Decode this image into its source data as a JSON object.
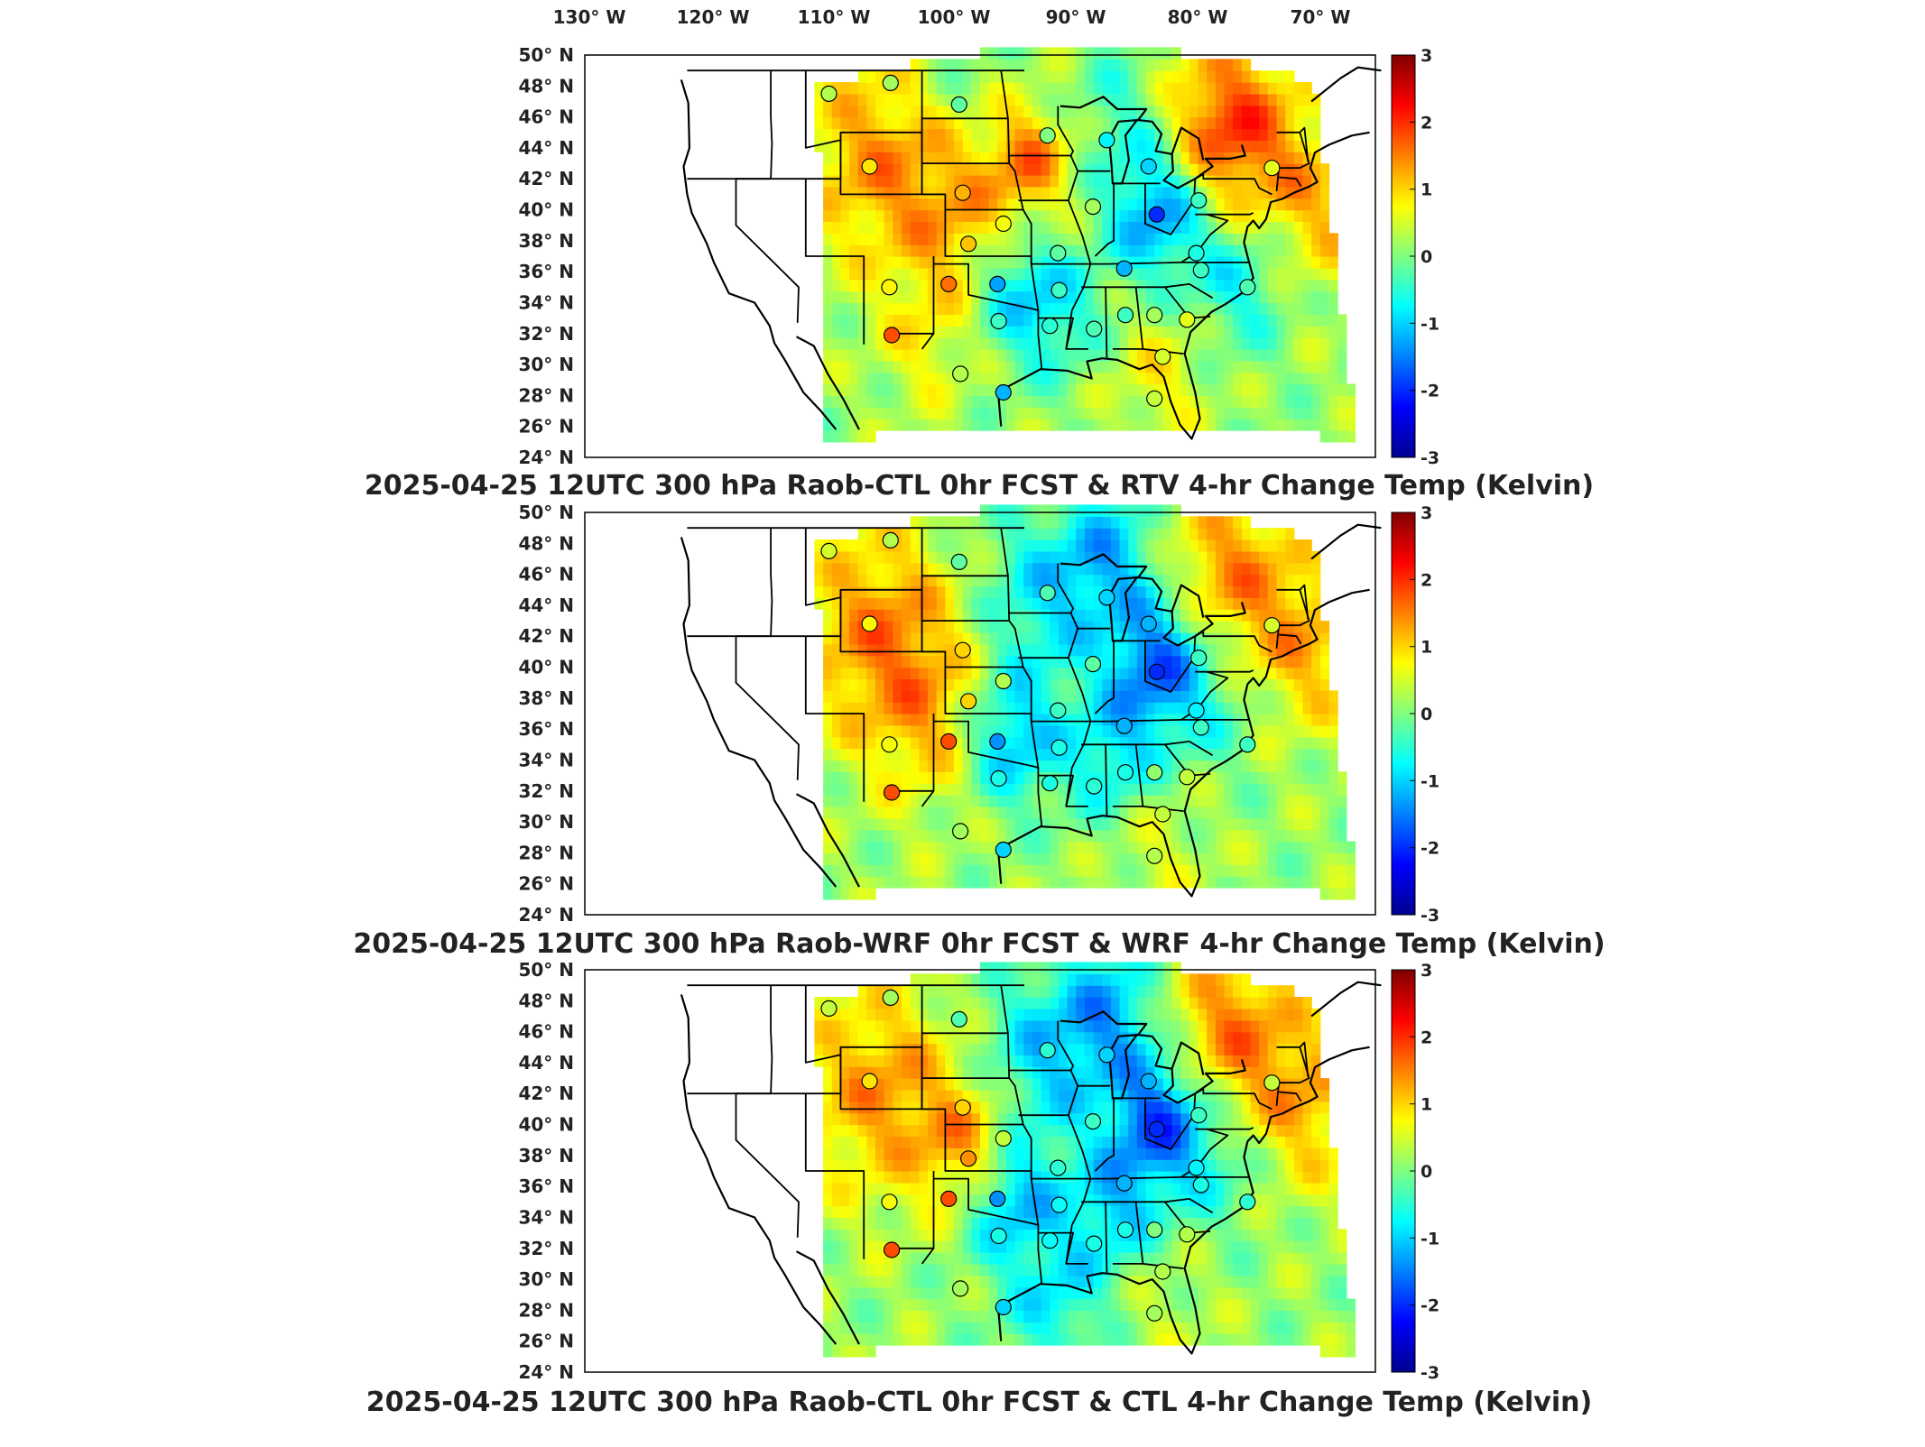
{
  "lon_ticks": [
    "130° W",
    "120° W",
    "110° W",
    "100° W",
    "90° W",
    "80° W",
    "70° W"
  ],
  "colors": {
    "colormap": [
      "#00008f",
      "#0000ff",
      "#0080ff",
      "#00ffff",
      "#80ff80",
      "#ffff00",
      "#ff8000",
      "#ff0000",
      "#800000"
    ],
    "state_lines": "#000000"
  },
  "chart_data": [
    {
      "type": "heatmap",
      "title": "2025-04-25 12UTC 300 hPa Raob-CTL 0hr FCST & RTV 4-hr Change Temp (Kelvin)",
      "x_range": [
        -133,
        -65
      ],
      "y_range": [
        24,
        50
      ],
      "y_ticks": [
        "24° N",
        "26° N",
        "28° N",
        "30° N",
        "32° N",
        "34° N",
        "36° N",
        "38° N",
        "40° N",
        "42° N",
        "44° N",
        "46° N",
        "48° N",
        "50° N"
      ],
      "colorbar": {
        "range": [
          -3,
          3
        ],
        "ticks": [
          "-3",
          "-2",
          "-1",
          "0",
          "1",
          "2",
          "3"
        ]
      }
    },
    {
      "type": "heatmap",
      "title": "2025-04-25 12UTC 300 hPa Raob-WRF 0hr FCST & WRF 4-hr Change Temp (Kelvin)",
      "x_range": [
        -133,
        -65
      ],
      "y_range": [
        24,
        50
      ],
      "y_ticks": [
        "24° N",
        "26° N",
        "28° N",
        "30° N",
        "32° N",
        "34° N",
        "36° N",
        "38° N",
        "40° N",
        "42° N",
        "44° N",
        "46° N",
        "48° N",
        "50° N"
      ],
      "colorbar": {
        "range": [
          -3,
          3
        ],
        "ticks": [
          "-3",
          "-2",
          "-1",
          "0",
          "1",
          "2",
          "3"
        ]
      }
    },
    {
      "type": "heatmap",
      "title": "2025-04-25 12UTC 300 hPa Raob-CTL 0hr FCST & CTL 4-hr Change Temp (Kelvin)",
      "x_range": [
        -133,
        -65
      ],
      "y_range": [
        24,
        50
      ],
      "y_ticks": [
        "24° N",
        "26° N",
        "28° N",
        "30° N",
        "32° N",
        "34° N",
        "36° N",
        "38° N",
        "40° N",
        "42° N",
        "44° N",
        "46° N",
        "48° N",
        "50° N"
      ],
      "colorbar": {
        "range": [
          -3,
          3
        ],
        "ticks": [
          "-3",
          "-2",
          "-1",
          "0",
          "1",
          "2",
          "3"
        ]
      }
    }
  ],
  "raob_stations": [
    {
      "lon": -112.0,
      "lat": 47.5,
      "v": [
        0.3,
        0.5,
        0.4
      ]
    },
    {
      "lon": -106.7,
      "lat": 48.2,
      "v": [
        0.2,
        0.3,
        0.2
      ]
    },
    {
      "lon": -100.8,
      "lat": 46.8,
      "v": [
        -0.2,
        -0.2,
        -0.3
      ]
    },
    {
      "lon": -93.2,
      "lat": 44.8,
      "v": [
        0.0,
        -0.3,
        -0.5
      ]
    },
    {
      "lon": -88.1,
      "lat": 44.5,
      "v": [
        -0.8,
        -1.0,
        -1.0
      ]
    },
    {
      "lon": -84.5,
      "lat": 42.8,
      "v": [
        -1.0,
        -1.2,
        -1.2
      ]
    },
    {
      "lon": -108.5,
      "lat": 42.8,
      "v": [
        0.9,
        0.8,
        0.9
      ]
    },
    {
      "lon": -100.5,
      "lat": 41.1,
      "v": [
        1.2,
        1.0,
        1.0
      ]
    },
    {
      "lon": -97.0,
      "lat": 39.1,
      "v": [
        0.7,
        0.3,
        0.4
      ]
    },
    {
      "lon": -89.3,
      "lat": 40.2,
      "v": [
        0.2,
        -0.2,
        -0.4
      ]
    },
    {
      "lon": -83.8,
      "lat": 39.7,
      "v": [
        -2.0,
        -2.0,
        -2.0
      ]
    },
    {
      "lon": -80.2,
      "lat": 40.6,
      "v": [
        -0.4,
        -0.4,
        -0.4
      ]
    },
    {
      "lon": -73.9,
      "lat": 42.7,
      "v": [
        0.6,
        0.5,
        0.4
      ]
    },
    {
      "lon": -100.0,
      "lat": 37.8,
      "v": [
        1.1,
        1.0,
        1.4
      ]
    },
    {
      "lon": -106.8,
      "lat": 35.0,
      "v": [
        0.8,
        0.7,
        0.7
      ]
    },
    {
      "lon": -101.7,
      "lat": 35.2,
      "v": [
        1.6,
        1.8,
        1.8
      ]
    },
    {
      "lon": -97.5,
      "lat": 35.2,
      "v": [
        -1.3,
        -1.4,
        -1.4
      ]
    },
    {
      "lon": -92.3,
      "lat": 37.2,
      "v": [
        -0.2,
        -0.4,
        -0.5
      ]
    },
    {
      "lon": -92.2,
      "lat": 34.8,
      "v": [
        -0.4,
        -0.6,
        -0.7
      ]
    },
    {
      "lon": -86.6,
      "lat": 36.2,
      "v": [
        -1.2,
        -1.2,
        -1.2
      ]
    },
    {
      "lon": -80.4,
      "lat": 37.2,
      "v": [
        -0.6,
        -0.8,
        -0.8
      ]
    },
    {
      "lon": -80.0,
      "lat": 36.1,
      "v": [
        -0.4,
        -0.4,
        -0.6
      ]
    },
    {
      "lon": -76.0,
      "lat": 35.0,
      "v": [
        -0.3,
        -0.4,
        -0.5
      ]
    },
    {
      "lon": -97.4,
      "lat": 32.8,
      "v": [
        -0.4,
        -0.6,
        -0.6
      ]
    },
    {
      "lon": -93.0,
      "lat": 32.5,
      "v": [
        -0.5,
        -0.6,
        -0.7
      ]
    },
    {
      "lon": -89.2,
      "lat": 32.3,
      "v": [
        -0.3,
        -0.5,
        -0.6
      ]
    },
    {
      "lon": -86.5,
      "lat": 33.2,
      "v": [
        -0.4,
        -0.6,
        -0.6
      ]
    },
    {
      "lon": -84.0,
      "lat": 33.2,
      "v": [
        0.2,
        0.1,
        0.0
      ]
    },
    {
      "lon": -81.2,
      "lat": 32.9,
      "v": [
        0.6,
        0.4,
        0.3
      ]
    },
    {
      "lon": -106.6,
      "lat": 31.9,
      "v": [
        1.8,
        1.8,
        1.8
      ]
    },
    {
      "lon": -83.3,
      "lat": 30.5,
      "v": [
        0.5,
        0.4,
        0.3
      ]
    },
    {
      "lon": -97.0,
      "lat": 28.2,
      "v": [
        -1.2,
        -1.0,
        -1.0
      ]
    },
    {
      "lon": -84.0,
      "lat": 27.8,
      "v": [
        0.4,
        0.3,
        0.2
      ]
    },
    {
      "lon": -100.7,
      "lat": 29.4,
      "v": [
        0.3,
        0.2,
        0.2
      ]
    }
  ]
}
